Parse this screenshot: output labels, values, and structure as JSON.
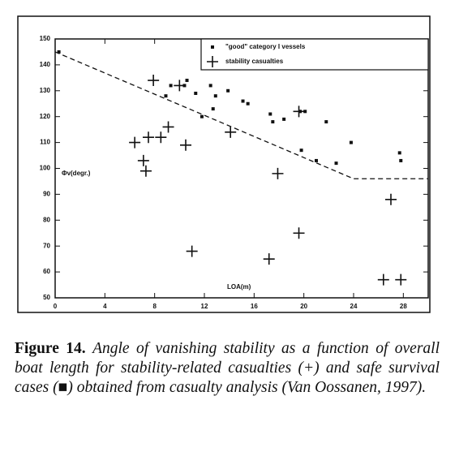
{
  "chart_data": {
    "type": "scatter",
    "x_label": "LOA(m)",
    "y_label": "Φv(degr.)",
    "xlim": [
      0,
      30
    ],
    "ylim": [
      50,
      150
    ],
    "xticks": [
      0,
      4,
      8,
      12,
      16,
      20,
      24,
      28
    ],
    "yticks": [
      50,
      60,
      70,
      80,
      90,
      100,
      110,
      120,
      130,
      140,
      150
    ],
    "legend": "top-right",
    "series": [
      {
        "name": "\"good\" category I vessels",
        "marker": "square",
        "color": "#111111",
        "x": [
          0.3,
          8.9,
          9.3,
          10.4,
          10.6,
          11.3,
          11.8,
          12.5,
          12.7,
          12.9,
          13.9,
          15.1,
          15.5,
          17.3,
          17.5,
          18.4,
          19.7,
          20.1,
          19.8,
          21.0,
          21.8,
          22.6,
          23.8,
          27.7,
          27.8
        ],
        "values": [
          145,
          128,
          132,
          132,
          134,
          129,
          120,
          132,
          123,
          128,
          130,
          126,
          125,
          121,
          118,
          119,
          122,
          122,
          107,
          103,
          118,
          102,
          110,
          106,
          103
        ]
      },
      {
        "name": "stability casualties",
        "marker": "plus",
        "color": "#111111",
        "x": [
          6.4,
          7.1,
          7.3,
          7.5,
          7.9,
          8.5,
          9.1,
          10.0,
          10.5,
          11.0,
          14.1,
          17.2,
          17.9,
          19.6,
          19.6,
          27.0,
          26.4,
          27.8
        ],
        "values": [
          110,
          103,
          99,
          112,
          134,
          112,
          116,
          132,
          109,
          68,
          114,
          65,
          98,
          75,
          122,
          88,
          57,
          57
        ]
      },
      {
        "marker": "dashed-line",
        "color": "#111111",
        "x": [
          0,
          24,
          30
        ],
        "values": [
          145,
          96,
          96
        ]
      }
    ]
  },
  "caption": {
    "label": "Figure 14.",
    "text": "Angle of vanishing stability as a function of overall boat length for stability-related casualties (+) and safe survival cases (■) obtained from casualty analysis (Van Oossanen, 1997)."
  }
}
